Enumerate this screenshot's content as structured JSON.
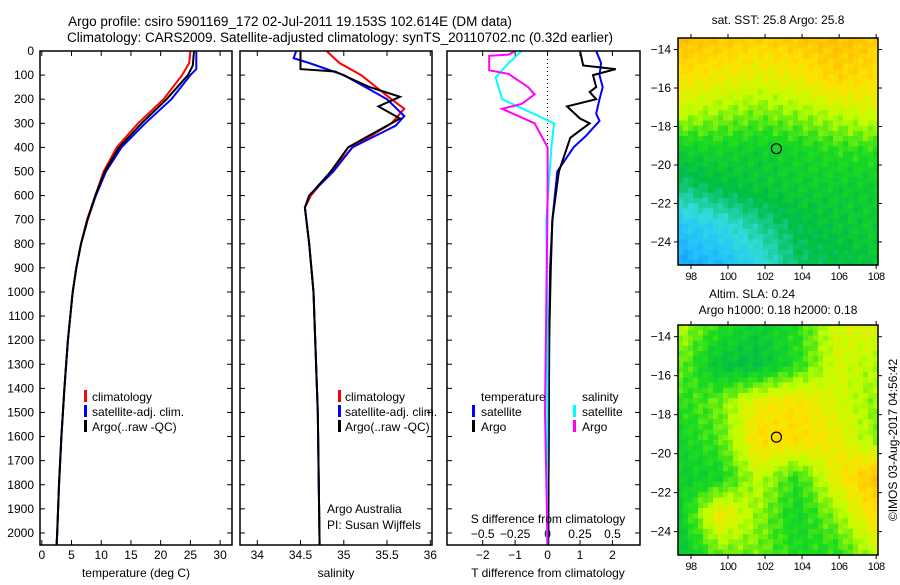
{
  "title": {
    "line1": "Argo profile: csiro 5901169_172 02-Jul-2011 19.153S 102.614E (DM data)",
    "line2": "Climatology: CARS2009. Satellite-adjusted climatology: synTS_20110702.nc (0.32d earlier)"
  },
  "colors": {
    "climatology": "#ff0000",
    "satellite": "#0000ff",
    "argo": "#000000",
    "s_satellite": "#00ffff",
    "s_argo": "#ff00ff"
  },
  "chart_data": [
    {
      "type": "line",
      "name": "temperature",
      "xlabel": "temperature (deg C)",
      "ylabel": "",
      "xlim": [
        -0.3,
        32
      ],
      "ylim": [
        2050,
        0
      ],
      "xticks": [
        0,
        5,
        10,
        15,
        20,
        25,
        30
      ],
      "yticks": [
        0,
        100,
        200,
        300,
        400,
        500,
        600,
        700,
        800,
        900,
        1000,
        1100,
        1200,
        1300,
        1400,
        1500,
        1600,
        1700,
        1800,
        1900,
        2000
      ],
      "legend": [
        "climatology",
        "satellite-adj. clim.",
        "Argo(..raw -QC)"
      ],
      "series": [
        {
          "name": "climatology",
          "color": "#ff0000",
          "points": [
            [
              25,
              0
            ],
            [
              24.8,
              50
            ],
            [
              23.6,
              100
            ],
            [
              20.5,
              200
            ],
            [
              16.2,
              300
            ],
            [
              12.6,
              400
            ],
            [
              10.4,
              500
            ],
            [
              9,
              600
            ],
            [
              7.6,
              700
            ],
            [
              6.6,
              800
            ],
            [
              5.8,
              900
            ],
            [
              5.2,
              1000
            ],
            [
              4.4,
              1200
            ],
            [
              3.8,
              1400
            ],
            [
              3.3,
              1600
            ],
            [
              2.9,
              1800
            ],
            [
              2.6,
              2000
            ],
            [
              2.5,
              2050
            ]
          ]
        },
        {
          "name": "satellite-adj. clim.",
          "color": "#0000ff",
          "points": [
            [
              26,
              0
            ],
            [
              26,
              75
            ],
            [
              25,
              100
            ],
            [
              21.8,
              200
            ],
            [
              17.4,
              300
            ],
            [
              13.4,
              400
            ],
            [
              10.8,
              500
            ],
            [
              9.1,
              600
            ],
            [
              7.7,
              700
            ],
            [
              6.6,
              800
            ],
            [
              5.8,
              900
            ],
            [
              5.2,
              1000
            ],
            [
              4.4,
              1200
            ],
            [
              3.8,
              1400
            ],
            [
              3.3,
              1600
            ],
            [
              2.9,
              1800
            ],
            [
              2.6,
              2000
            ],
            [
              2.5,
              2050
            ]
          ]
        },
        {
          "name": "Argo(..raw -QC)",
          "color": "#000000",
          "points": [
            [
              25.6,
              0
            ],
            [
              25.4,
              60
            ],
            [
              24.6,
              100
            ],
            [
              21,
              200
            ],
            [
              16.8,
              300
            ],
            [
              13,
              400
            ],
            [
              10.6,
              500
            ],
            [
              9,
              600
            ],
            [
              7.7,
              700
            ],
            [
              6.6,
              800
            ],
            [
              5.8,
              900
            ],
            [
              5.2,
              1000
            ],
            [
              4.4,
              1200
            ],
            [
              3.8,
              1400
            ],
            [
              3.3,
              1600
            ],
            [
              2.9,
              1800
            ],
            [
              2.6,
              2000
            ],
            [
              2.5,
              2050
            ]
          ]
        }
      ]
    },
    {
      "type": "line",
      "name": "salinity",
      "xlabel": "salinity",
      "xlim": [
        33.8,
        36.02
      ],
      "ylim": [
        2050,
        0
      ],
      "xticks": [
        34,
        34.5,
        35,
        35.5,
        36
      ],
      "legend": [
        "climatology",
        "satellite-adj. clim.",
        "Argo(..raw -QC)"
      ],
      "annotation": [
        "Argo Australia",
        "PI: Susan Wijffels"
      ],
      "series": [
        {
          "name": "climatology",
          "color": "#ff0000",
          "points": [
            [
              34.8,
              0
            ],
            [
              34.95,
              50
            ],
            [
              35.2,
              100
            ],
            [
              35.55,
              200
            ],
            [
              35.7,
              240
            ],
            [
              35.55,
              300
            ],
            [
              35.1,
              400
            ],
            [
              34.85,
              500
            ],
            [
              34.62,
              600
            ],
            [
              34.55,
              650
            ],
            [
              34.6,
              800
            ],
            [
              34.65,
              1000
            ],
            [
              34.7,
              1500
            ],
            [
              34.72,
              2050
            ]
          ]
        },
        {
          "name": "satellite-adj. clim.",
          "color": "#0000ff",
          "points": [
            [
              34.45,
              0
            ],
            [
              34.42,
              30
            ],
            [
              34.6,
              50
            ],
            [
              35.0,
              100
            ],
            [
              35.5,
              200
            ],
            [
              35.7,
              270
            ],
            [
              35.6,
              310
            ],
            [
              35.1,
              400
            ],
            [
              34.88,
              500
            ],
            [
              34.6,
              600
            ],
            [
              34.55,
              650
            ],
            [
              34.6,
              800
            ],
            [
              34.65,
              1000
            ],
            [
              34.7,
              1500
            ],
            [
              34.72,
              2050
            ]
          ]
        },
        {
          "name": "Argo(..raw -QC)",
          "color": "#000000",
          "points": [
            [
              34.5,
              0
            ],
            [
              34.5,
              75
            ],
            [
              34.9,
              85
            ],
            [
              35.3,
              150
            ],
            [
              35.65,
              190
            ],
            [
              35.4,
              230
            ],
            [
              35.65,
              280
            ],
            [
              35.3,
              350
            ],
            [
              35.05,
              400
            ],
            [
              34.85,
              500
            ],
            [
              34.6,
              600
            ],
            [
              34.55,
              650
            ],
            [
              34.6,
              800
            ],
            [
              34.65,
              1000
            ],
            [
              34.7,
              1500
            ],
            [
              34.72,
              2050
            ]
          ]
        }
      ]
    },
    {
      "type": "line",
      "name": "difference",
      "xlabel": "T difference from climatology",
      "x2label": "S difference from climatology",
      "xlim": [
        -3.1,
        2.85
      ],
      "x2lim": [
        -0.775,
        0.7125
      ],
      "ylim": [
        2050,
        0
      ],
      "xticks": [
        -2,
        -1,
        0,
        1,
        2
      ],
      "x2ticks": [
        -0.5,
        -0.25,
        0,
        0.25,
        0.5
      ],
      "legend": {
        "temperature_title": "temperature",
        "salinity_title": "salinity",
        "t_satellite": "satellite",
        "t_argo": "Argo",
        "s_satellite": "satellite",
        "s_argo": "Argo"
      },
      "series": [
        {
          "name": "T satellite",
          "axis": "T",
          "color": "#0000ff",
          "points": [
            [
              1.5,
              0
            ],
            [
              1.65,
              50
            ],
            [
              1.6,
              100
            ],
            [
              1.7,
              150
            ],
            [
              1.6,
              200
            ],
            [
              1.5,
              260
            ],
            [
              1.6,
              290
            ],
            [
              1.2,
              350
            ],
            [
              0.8,
              400
            ],
            [
              0.3,
              500
            ],
            [
              0.15,
              700
            ],
            [
              0.08,
              900
            ],
            [
              0.05,
              1200
            ],
            [
              0.02,
              2050
            ]
          ]
        },
        {
          "name": "T Argo",
          "axis": "T",
          "color": "#000000",
          "points": [
            [
              1.0,
              0
            ],
            [
              1.1,
              60
            ],
            [
              2.1,
              75
            ],
            [
              1.4,
              100
            ],
            [
              1.5,
              150
            ],
            [
              1.3,
              170
            ],
            [
              1.5,
              200
            ],
            [
              0.6,
              230
            ],
            [
              1.0,
              280
            ],
            [
              1.3,
              300
            ],
            [
              0.7,
              360
            ],
            [
              0.35,
              500
            ],
            [
              0.15,
              700
            ],
            [
              0.1,
              900
            ],
            [
              0.05,
              1200
            ],
            [
              0.02,
              2050
            ]
          ]
        },
        {
          "name": "S satellite",
          "axis": "S",
          "color": "#00ffff",
          "points": [
            [
              -0.2,
              0
            ],
            [
              -0.3,
              50
            ],
            [
              -0.4,
              110
            ],
            [
              -0.35,
              200
            ],
            [
              -0.15,
              250
            ],
            [
              0.05,
              300
            ],
            [
              0.03,
              400
            ],
            [
              -0.01,
              700
            ],
            [
              0,
              1200
            ],
            [
              -0.005,
              2050
            ]
          ]
        },
        {
          "name": "S Argo",
          "axis": "S",
          "color": "#ff00ff",
          "points": [
            [
              -0.25,
              0
            ],
            [
              -0.3,
              15
            ],
            [
              -0.45,
              20
            ],
            [
              -0.45,
              80
            ],
            [
              -0.3,
              95
            ],
            [
              -0.15,
              150
            ],
            [
              -0.1,
              180
            ],
            [
              -0.2,
              220
            ],
            [
              -0.35,
              240
            ],
            [
              -0.1,
              300
            ],
            [
              0,
              400
            ],
            [
              0,
              600
            ],
            [
              -0.02,
              1500
            ],
            [
              0,
              2050
            ]
          ]
        }
      ]
    },
    {
      "type": "heatmap",
      "name": "sst-map",
      "title": "sat. SST: 25.8 Argo: 25.8",
      "xlim": [
        97.3,
        108.1
      ],
      "ylim": [
        -25.2,
        -13.4
      ],
      "xticks": [
        98,
        100,
        102,
        104,
        106,
        108
      ],
      "yticks": [
        -14,
        -16,
        -18,
        -20,
        -22,
        -24
      ],
      "marker": [
        102.614,
        -19.153
      ],
      "grid": [
        [
          0.82,
          0.8,
          0.78,
          0.8,
          0.82,
          0.8
        ],
        [
          0.75,
          0.72,
          0.7,
          0.72,
          0.78,
          0.75
        ],
        [
          0.65,
          0.62,
          0.6,
          0.62,
          0.65,
          0.68
        ],
        [
          0.5,
          0.52,
          0.5,
          0.52,
          0.55,
          0.55
        ],
        [
          0.4,
          0.45,
          0.48,
          0.5,
          0.5,
          0.5
        ],
        [
          0.25,
          0.3,
          0.38,
          0.45,
          0.48,
          0.5
        ],
        [
          0.18,
          0.22,
          0.3,
          0.42,
          0.45,
          0.48
        ]
      ]
    },
    {
      "type": "heatmap",
      "name": "sla-map",
      "title": "Altim. SLA: 0.24",
      "subtitle": "Argo h1000: 0.18 h2000: 0.18",
      "xlim": [
        97.3,
        108.1
      ],
      "ylim": [
        -25.2,
        -13.4
      ],
      "xticks": [
        98,
        100,
        102,
        104,
        106,
        108
      ],
      "yticks": [
        -14,
        -16,
        -18,
        -20,
        -22,
        -24
      ],
      "marker": [
        102.614,
        -19.153
      ],
      "grid": [
        [
          0.64,
          0.55,
          0.5,
          0.55,
          0.68,
          0.7
        ],
        [
          0.6,
          0.47,
          0.46,
          0.55,
          0.68,
          0.64
        ],
        [
          0.55,
          0.6,
          0.72,
          0.75,
          0.68,
          0.62
        ],
        [
          0.52,
          0.58,
          0.76,
          0.76,
          0.72,
          0.62
        ],
        [
          0.5,
          0.52,
          0.66,
          0.55,
          0.72,
          0.82
        ],
        [
          0.5,
          0.74,
          0.62,
          0.52,
          0.62,
          0.76
        ],
        [
          0.48,
          0.6,
          0.6,
          0.54,
          0.55,
          0.66
        ]
      ]
    }
  ],
  "copyright": "©IMOS 03-Aug-2017 04:56:42"
}
